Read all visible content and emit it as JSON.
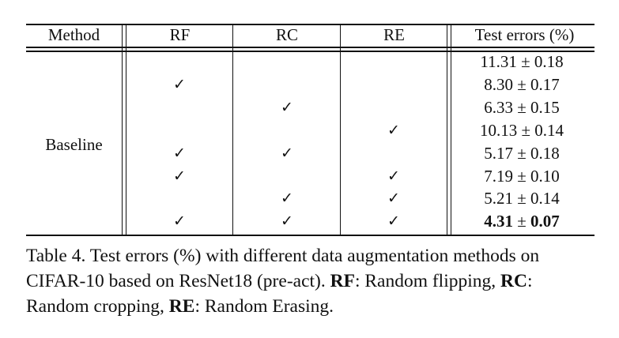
{
  "table": {
    "headers": {
      "method": "Method",
      "rf": "RF",
      "rc": "RC",
      "re": "RE",
      "errors": "Test errors (%)"
    },
    "method_label": "Baseline",
    "check_symbol": "✓",
    "rows": [
      {
        "rf": false,
        "rc": false,
        "re": false,
        "mean": "11.31",
        "pm": "±",
        "std": "0.18",
        "best": false
      },
      {
        "rf": true,
        "rc": false,
        "re": false,
        "mean": "8.30",
        "pm": "±",
        "std": "0.17",
        "best": false
      },
      {
        "rf": false,
        "rc": true,
        "re": false,
        "mean": "6.33",
        "pm": "±",
        "std": "0.15",
        "best": false
      },
      {
        "rf": false,
        "rc": false,
        "re": true,
        "mean": "10.13",
        "pm": "±",
        "std": "0.14",
        "best": false
      },
      {
        "rf": true,
        "rc": true,
        "re": false,
        "mean": "5.17",
        "pm": "±",
        "std": "0.18",
        "best": false
      },
      {
        "rf": true,
        "rc": false,
        "re": true,
        "mean": "7.19",
        "pm": "±",
        "std": "0.10",
        "best": false
      },
      {
        "rf": false,
        "rc": true,
        "re": true,
        "mean": "5.21",
        "pm": "±",
        "std": "0.14",
        "best": false
      },
      {
        "rf": true,
        "rc": true,
        "re": true,
        "mean": "4.31",
        "pm": "±",
        "std": "0.07",
        "best": true
      }
    ]
  },
  "caption": {
    "label": "Table 4.",
    "text1": " Test errors (%) with different data augmentation methods on CIFAR-10 based on ResNet18 (pre-act). ",
    "rf_abbr": "RF",
    "rf_def": ": Random flipping, ",
    "rc_abbr": "RC",
    "rc_def": ": Random cropping, ",
    "re_abbr": "RE",
    "re_def": ": Random Erasing."
  }
}
